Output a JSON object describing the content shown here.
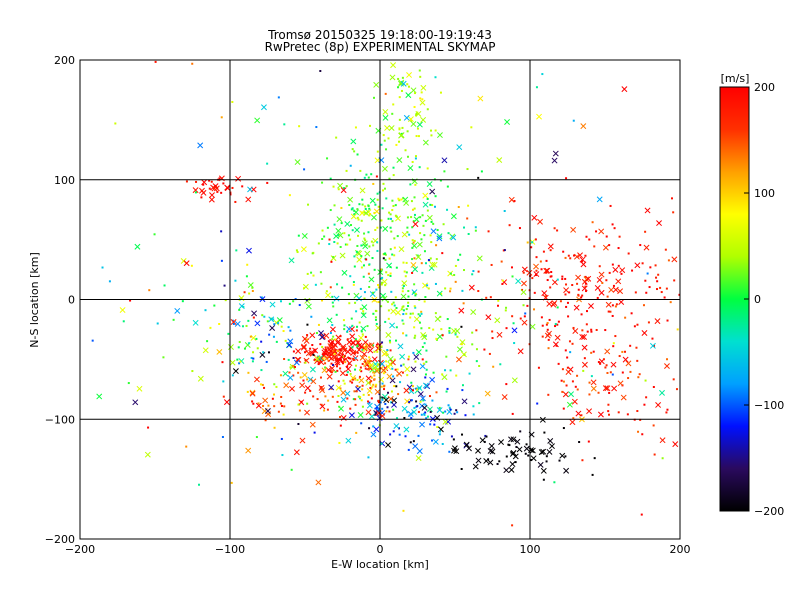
{
  "chart_data": {
    "type": "scatter",
    "title": "Tromsø 20150325 19:18:00-19:19:43",
    "subtitle": "RwPretec (8p) EXPERIMENTAL SKYMAP",
    "xlabel": "E-W location [km]",
    "ylabel": "N-S location [km]",
    "xlim": [
      -200,
      200
    ],
    "ylim": [
      -200,
      200
    ],
    "x_ticks": [
      -200,
      -100,
      0,
      100,
      200
    ],
    "y_ticks": [
      -200,
      -100,
      0,
      100,
      200
    ],
    "grid": true,
    "colorbar": {
      "label": "[m/s]",
      "range": [
        -200,
        200
      ],
      "ticks": [
        -200,
        -100,
        0,
        100,
        200
      ],
      "colors": [
        "#000000",
        "#2a0a5e",
        "#0010ff",
        "#00a0ff",
        "#00e0d0",
        "#00ff40",
        "#b0ff00",
        "#ffff00",
        "#ffa000",
        "#ff3000",
        "#ff0000"
      ]
    },
    "marker_types": [
      "dot",
      "x"
    ],
    "clusters": [
      {
        "x": -30,
        "y": -45,
        "sx": 12,
        "sy": 8,
        "v": 190,
        "sv": 15,
        "n": 150,
        "xfrac": 0.5
      },
      {
        "x": 0,
        "y": 60,
        "sx": 28,
        "sy": 40,
        "v": 30,
        "sv": 35,
        "n": 300,
        "xfrac": 0.2
      },
      {
        "x": 10,
        "y": -20,
        "sx": 30,
        "sy": 30,
        "v": 20,
        "sv": 45,
        "n": 250,
        "xfrac": 0.2
      },
      {
        "x": 20,
        "y": -90,
        "sx": 22,
        "sy": 18,
        "v": -100,
        "sv": 50,
        "n": 140,
        "xfrac": 0.35
      },
      {
        "x": 90,
        "y": -130,
        "sx": 20,
        "sy": 10,
        "v": -200,
        "sv": 5,
        "n": 70,
        "xfrac": 0.6
      },
      {
        "x": 140,
        "y": 10,
        "sx": 40,
        "sy": 30,
        "v": 185,
        "sv": 20,
        "n": 220,
        "xfrac": 0.3
      },
      {
        "x": 150,
        "y": -60,
        "sx": 30,
        "sy": 35,
        "v": 180,
        "sv": 25,
        "n": 120,
        "xfrac": 0.25
      },
      {
        "x": -105,
        "y": 95,
        "sx": 10,
        "sy": 5,
        "v": 195,
        "sv": 10,
        "n": 35,
        "xfrac": 0.5
      },
      {
        "x": 20,
        "y": 155,
        "sx": 10,
        "sy": 20,
        "v": 40,
        "sv": 20,
        "n": 60,
        "xfrac": 0.3
      },
      {
        "x": -80,
        "y": -25,
        "sx": 25,
        "sy": 20,
        "v": -20,
        "sv": 80,
        "n": 100,
        "xfrac": 0.3
      },
      {
        "x": -50,
        "y": -80,
        "sx": 25,
        "sy": 15,
        "v": 150,
        "sv": 40,
        "n": 80,
        "xfrac": 0.3
      },
      {
        "x": -5,
        "y": -65,
        "sx": 18,
        "sy": 15,
        "v": 120,
        "sv": 60,
        "n": 110,
        "xfrac": 0.3
      },
      {
        "x": 0,
        "y": 0,
        "sx": 120,
        "sy": 110,
        "v": 30,
        "sv": 110,
        "n": 260,
        "xfrac": 0.35
      }
    ]
  }
}
